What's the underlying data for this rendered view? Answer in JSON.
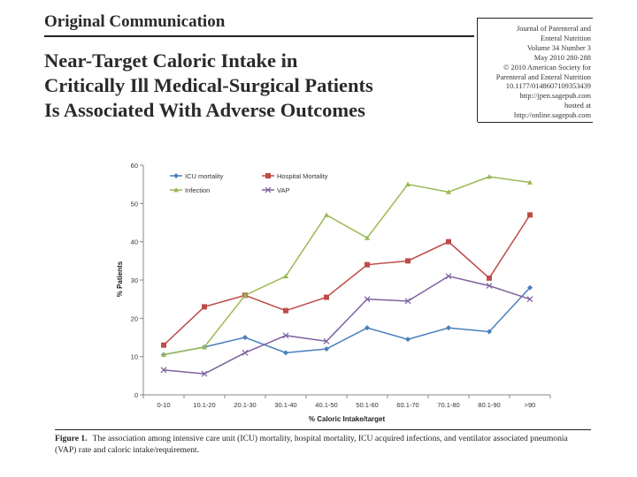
{
  "header": {
    "section_label": "Original Communication",
    "title_lines": [
      "Near-Target Caloric Intake in",
      "Critically Ill Medical-Surgical Patients",
      "Is Associated With Adverse Outcomes"
    ]
  },
  "journal_info": {
    "lines": [
      "Journal of Parenteral and",
      "Enteral Nutrition",
      "Volume 34 Number 3",
      "May 2010 280-288",
      "© 2010 American Society for",
      "Parenteral and Enteral Nutrition",
      "10.1177/0148607109353439",
      "http://jpen.sagepub.com",
      "hosted at",
      "http://online.sagepub.com"
    ]
  },
  "figure": {
    "label": "Figure 1.",
    "caption": "The association among intensive care unit (ICU) mortality, hospital mortality, ICU acquired infections, and ventilator associated pneumonia (VAP) rate and caloric intake/requirement."
  },
  "chart_data": {
    "type": "line",
    "title": "",
    "xlabel": "% Caloric Intake/target",
    "ylabel": "% Patients",
    "ylim": [
      0,
      60
    ],
    "yticks": [
      "0",
      "10",
      "20",
      "30",
      "40",
      "50",
      "60"
    ],
    "categories": [
      "0-10",
      "10.1-20",
      "20.1-30",
      "30.1-40",
      "40.1-50",
      "50.1-60",
      "60.1-70",
      "70.1-80",
      "80.1-90",
      ">90"
    ],
    "grid": false,
    "legend_position": "top-left",
    "series": [
      {
        "name": "ICU mortality",
        "color": "#4a7ebb",
        "marker": "diamond",
        "values": [
          10.5,
          12.5,
          15,
          11,
          12,
          17.5,
          14.5,
          17.5,
          16.5,
          28
        ]
      },
      {
        "name": "Hospital Mortality",
        "color": "#be4b48",
        "marker": "square",
        "values": [
          13,
          23,
          26,
          22,
          25.5,
          34,
          35,
          40,
          30.5,
          47
        ]
      },
      {
        "name": "Infection",
        "color": "#98b954",
        "marker": "triangle",
        "values": [
          10.5,
          12.5,
          26,
          31,
          47,
          41,
          55,
          53,
          57,
          55.5
        ]
      },
      {
        "name": "VAP",
        "color": "#7d60a0",
        "marker": "x",
        "values": [
          6.5,
          5.5,
          11,
          15.5,
          14,
          25,
          24.5,
          31,
          28.5,
          25
        ]
      }
    ]
  }
}
